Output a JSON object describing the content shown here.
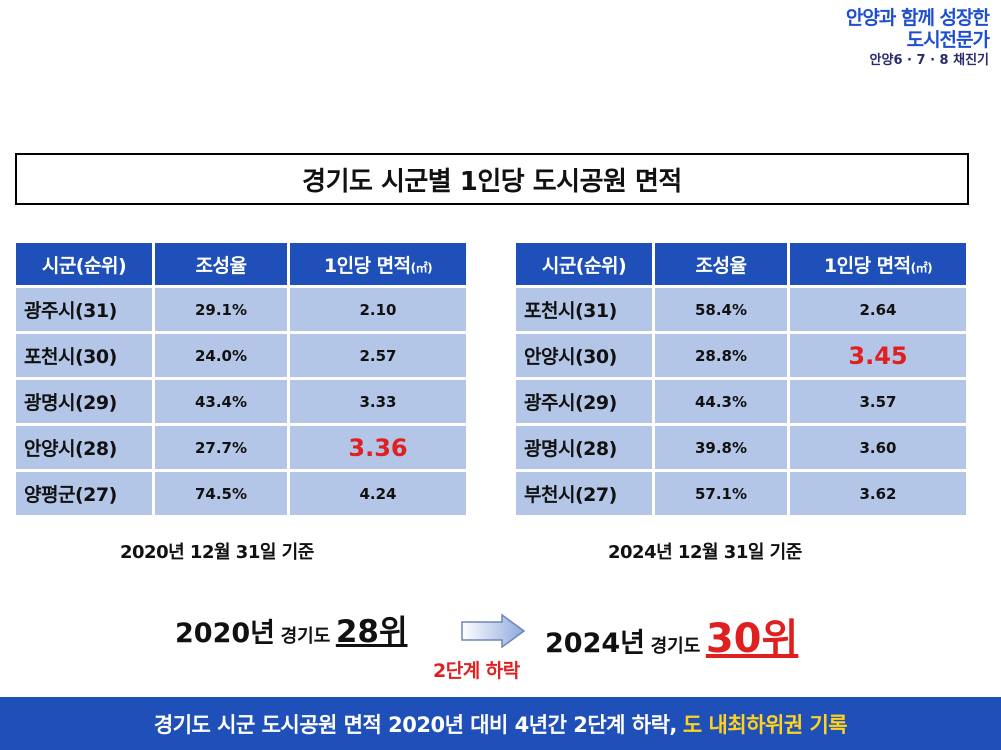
{
  "brand": {
    "line1": "안양과 함께 성장한",
    "line2": "도시전문가",
    "line3": "안양6 · 7 · 8 채진기"
  },
  "title": "경기도 시군별 1인당 도시공원 면적",
  "tables": {
    "headers": {
      "region": "시군(순위)",
      "rate": "조성율",
      "area": "1인당 면적",
      "unit": "(㎡)"
    },
    "left": {
      "rows": [
        {
          "name": "광주시(31)",
          "rate": "29.1%",
          "area": "2.10"
        },
        {
          "name": "포천시(30)",
          "rate": "24.0%",
          "area": "2.57"
        },
        {
          "name": "광명시(29)",
          "rate": "43.4%",
          "area": "3.33"
        },
        {
          "name": "안양시(28)",
          "rate": "27.7%",
          "area": "3.36"
        },
        {
          "name": "양평군(27)",
          "rate": "74.5%",
          "area": "4.24"
        }
      ],
      "basis": "2020년 12월 31일 기준"
    },
    "right": {
      "rows": [
        {
          "name": "포천시(31)",
          "rate": "58.4%",
          "area": "2.64"
        },
        {
          "name": "안양시(30)",
          "rate": "28.8%",
          "area": "3.45"
        },
        {
          "name": "광주시(29)",
          "rate": "44.3%",
          "area": "3.57"
        },
        {
          "name": "광명시(28)",
          "rate": "39.8%",
          "area": "3.60"
        },
        {
          "name": "부천시(27)",
          "rate": "57.1%",
          "area": "3.62"
        }
      ],
      "basis": "2024년 12월 31일 기준"
    }
  },
  "comparison": {
    "from_year": "2020년",
    "from_region": "경기도",
    "from_rank": "28위",
    "to_year": "2024년",
    "to_region": "경기도",
    "to_rank": "30위",
    "change": "2단계 하락",
    "arrow_icon": "right-arrow-icon"
  },
  "footer": {
    "main": "경기도 시군 도시공원 면적 2020년 대비 4년간 2단계 하락,",
    "accent": "도 내최하위권 기록"
  },
  "colors": {
    "header_blue": "#1f4fb8",
    "cell_blue": "#b4c6e7",
    "highlight_red": "#e02020",
    "accent_yellow": "#ffd21f"
  }
}
